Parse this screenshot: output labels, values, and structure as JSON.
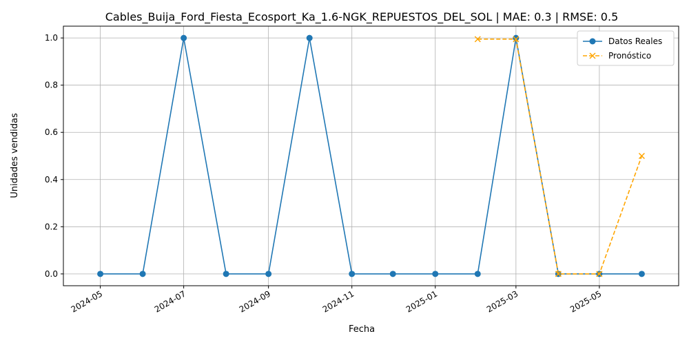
{
  "chart_data": {
    "type": "line",
    "title": "Cables_Buija_Ford_Fiesta_Ecosport_Ka_1.6-NGK_REPUESTOS_DEL_SOL | MAE: 0.3 | RMSE: 0.5",
    "xlabel": "Fecha",
    "ylabel": "Unidades vendidas",
    "x_tick_labels": [
      "2024-05",
      "2024-07",
      "2024-09",
      "2024-11",
      "2025-01",
      "2025-03",
      "2025-05"
    ],
    "y_tick_labels": [
      "0.0",
      "0.2",
      "0.4",
      "0.6",
      "0.8",
      "1.0"
    ],
    "ylim": [
      -0.05,
      1.05
    ],
    "xlim": [
      "2024-04-04",
      "2025-06-28"
    ],
    "grid": true,
    "legend_position": "top-right",
    "series": [
      {
        "name": "Datos Reales",
        "color": "#1f77b4",
        "style": "solid",
        "marker": "circle",
        "x": [
          "2024-05-01",
          "2024-06-01",
          "2024-07-01",
          "2024-08-01",
          "2024-09-01",
          "2024-10-01",
          "2024-11-01",
          "2024-12-01",
          "2025-01-01",
          "2025-02-01",
          "2025-03-01",
          "2025-04-01",
          "2025-05-01",
          "2025-06-01"
        ],
        "values": [
          0,
          0,
          1,
          0,
          0,
          1,
          0,
          0,
          0,
          0,
          1,
          0,
          0,
          0
        ]
      },
      {
        "name": "Pronóstico",
        "color": "#ffa500",
        "style": "dashed",
        "marker": "x",
        "x": [
          "2025-02-01",
          "2025-03-01",
          "2025-04-01",
          "2025-05-01",
          "2025-06-01"
        ],
        "values": [
          0.995,
          0.995,
          0.0,
          0.0,
          0.5
        ]
      }
    ]
  }
}
